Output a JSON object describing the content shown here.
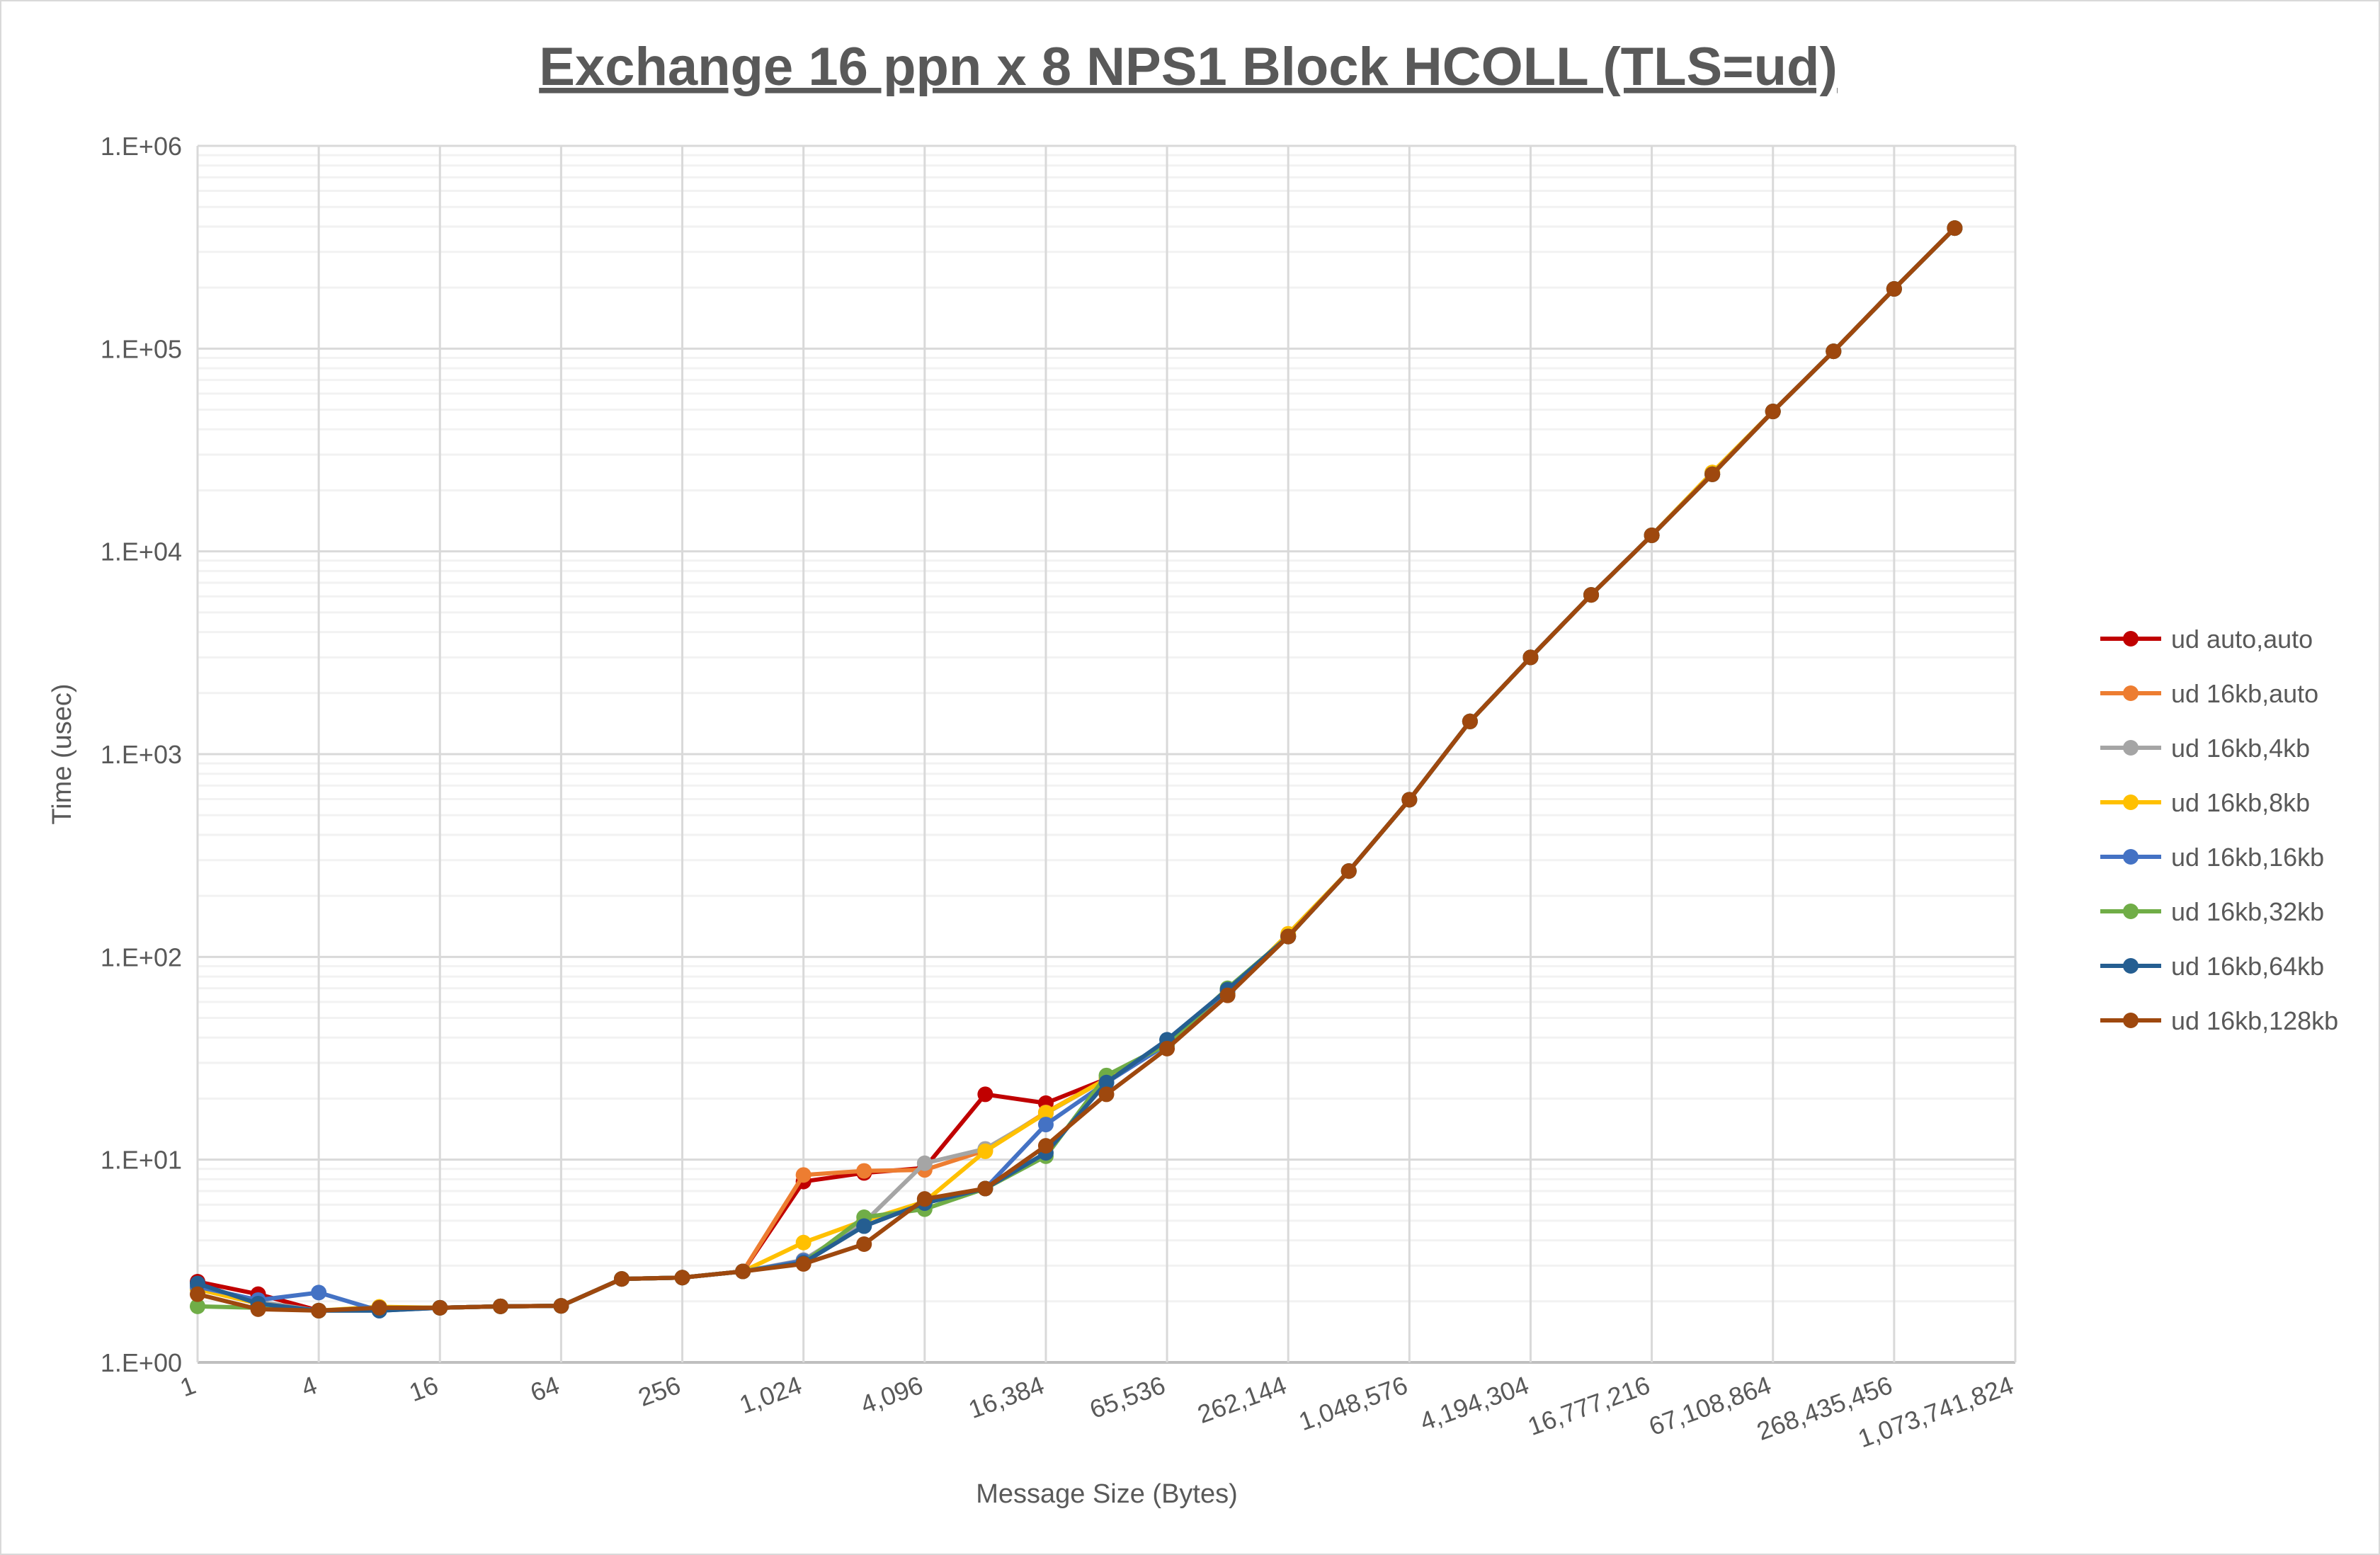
{
  "chart_data": {
    "type": "line",
    "title": "Exchange 16 ppn x 8 NPS1 Block HCOLL (TLS=ud)",
    "xlabel": "Message Size (Bytes)",
    "ylabel": "Time (usec)",
    "x_scale": "log2",
    "y_scale": "log10",
    "ylim": [
      1,
      1000000
    ],
    "grid": true,
    "legend": "right",
    "y_tick_labels": [
      "1.E+00",
      "1.E+01",
      "1.E+02",
      "1.E+03",
      "1.E+04",
      "1.E+05",
      "1.E+06"
    ],
    "x_tick_labels": [
      "1",
      "4",
      "16",
      "64",
      "256",
      "1,024",
      "4,096",
      "16,384",
      "65,536",
      "262,144",
      "1,048,576",
      "4,194,304",
      "16,777,216",
      "67,108,864",
      "268,435,456",
      "1,073,741,824"
    ],
    "x": [
      1,
      2,
      4,
      8,
      16,
      32,
      64,
      128,
      256,
      512,
      1024,
      2048,
      4096,
      8192,
      16384,
      32768,
      65536,
      131072,
      262144,
      524288,
      1048576,
      2097152,
      4194304,
      8388608,
      16777216,
      33554432,
      67108864,
      134217728,
      268435456,
      536870912
    ],
    "series": [
      {
        "name": "ud auto,auto",
        "color": "#c00000",
        "values": [
          2.5,
          2.17,
          1.8,
          1.86,
          1.86,
          1.89,
          1.9,
          2.58,
          2.62,
          2.81,
          7.8,
          8.6,
          9.1,
          21,
          19,
          25,
          37,
          68,
          126,
          265,
          596,
          1450,
          3000,
          6100,
          12000,
          24000,
          49000,
          97000,
          197000,
          393000
        ]
      },
      {
        "name": "ud 16kb,auto",
        "color": "#ed7d31",
        "values": [
          2.3,
          1.95,
          1.8,
          1.86,
          1.86,
          1.89,
          1.9,
          2.58,
          2.62,
          2.81,
          8.4,
          8.8,
          8.9,
          11.1,
          17.1,
          25,
          37,
          66,
          128,
          265,
          596,
          1450,
          3000,
          6100,
          12000,
          24500,
          49000,
          97000,
          197000,
          393000
        ]
      },
      {
        "name": "ud 16kb,4kb",
        "color": "#a5a5a5",
        "values": [
          2.36,
          1.99,
          1.8,
          1.86,
          1.86,
          1.89,
          1.9,
          2.58,
          2.62,
          2.81,
          3.2,
          4.9,
          9.6,
          11.3,
          16.9,
          25,
          37,
          66,
          126,
          265,
          596,
          1450,
          3000,
          6100,
          12000,
          24000,
          49000,
          97000,
          197000,
          393000
        ]
      },
      {
        "name": "ud 16kb,8kb",
        "color": "#ffc000",
        "values": [
          2.3,
          1.95,
          1.8,
          1.88,
          1.86,
          1.89,
          1.9,
          2.58,
          2.62,
          2.81,
          3.9,
          5.0,
          6.2,
          11,
          17,
          25,
          37,
          66,
          130,
          265,
          596,
          1450,
          3000,
          6100,
          12000,
          24500,
          49000,
          97000,
          197000,
          393000
        ]
      },
      {
        "name": "ud 16kb,16kb",
        "color": "#4472c4",
        "values": [
          2.36,
          2.03,
          2.21,
          1.8,
          1.86,
          1.89,
          1.9,
          2.58,
          2.62,
          2.81,
          3.17,
          4.7,
          6.1,
          7.2,
          14.9,
          24,
          37,
          68,
          126,
          265,
          596,
          1450,
          3000,
          6100,
          12000,
          24000,
          49000,
          97000,
          197000,
          393000
        ]
      },
      {
        "name": "ud 16kb,32kb",
        "color": "#70ad47",
        "values": [
          1.89,
          1.86,
          1.8,
          1.86,
          1.86,
          1.89,
          1.9,
          2.58,
          2.62,
          2.81,
          3.1,
          5.2,
          5.7,
          7.2,
          10.4,
          26,
          37,
          70,
          126,
          265,
          596,
          1450,
          3000,
          6100,
          12000,
          24000,
          49000,
          97000,
          197000,
          393000
        ]
      },
      {
        "name": "ud 16kb,64kb",
        "color": "#255e91",
        "values": [
          2.45,
          1.95,
          1.8,
          1.8,
          1.86,
          1.89,
          1.9,
          2.58,
          2.62,
          2.81,
          3.1,
          4.7,
          6.1,
          7.2,
          10.8,
          24,
          39,
          69,
          126,
          265,
          596,
          1450,
          3000,
          6100,
          12000,
          24000,
          49000,
          97000,
          197000,
          393000
        ]
      },
      {
        "name": "ud 16kb,128kb",
        "color": "#9e480e",
        "values": [
          2.17,
          1.83,
          1.8,
          1.86,
          1.86,
          1.89,
          1.9,
          2.58,
          2.62,
          2.81,
          3.06,
          3.83,
          6.4,
          7.2,
          11.7,
          21,
          35.3,
          64.6,
          126,
          265,
          596,
          1450,
          3000,
          6100,
          12000,
          24000,
          49000,
          97000,
          197000,
          393000
        ]
      }
    ]
  }
}
